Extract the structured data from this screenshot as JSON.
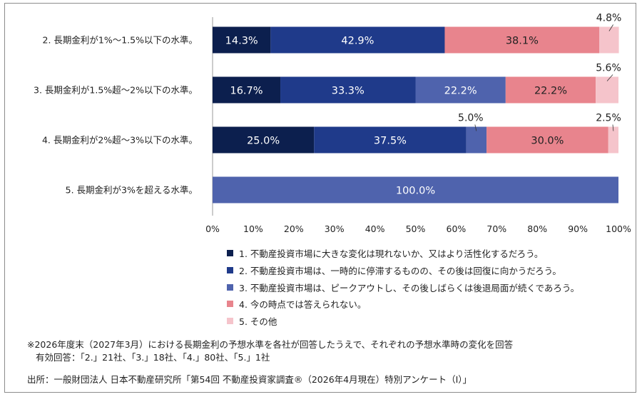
{
  "chart_data": {
    "type": "bar",
    "orientation": "horizontal",
    "stacked": true,
    "categories": [
      "2.  長期金利が1%～1.5%以下の水準。",
      "3.  長期金利が1.5%超～2%以下の水準。",
      "4.  長期金利が2%超～3%以下の水準。",
      "5.  長期金利が3%を超える水準。"
    ],
    "series": [
      {
        "name": "1.  不動産投資市場に大きな変化は現れないか、又はより活性化するだろう。",
        "color": "#0c1f4e",
        "values": [
          14.3,
          16.7,
          25.0,
          0
        ]
      },
      {
        "name": "2.  不動産投資市場は、一時的に停滞するものの、その後は回復に向かうだろう。",
        "color": "#1f3a8a",
        "values": [
          42.9,
          33.3,
          37.5,
          0
        ]
      },
      {
        "name": "3.  不動産投資市場は、ピークアウトし、その後しばらくは後退局面が続くであろう。",
        "color": "#4f63ad",
        "values": [
          0,
          22.2,
          5.0,
          100.0
        ]
      },
      {
        "name": "4.  今の時点では答えられない。",
        "color": "#e8848d",
        "values": [
          38.1,
          22.2,
          30.0,
          0
        ]
      },
      {
        "name": "5.  その他",
        "color": "#f5c4cb",
        "values": [
          4.8,
          5.6,
          2.5,
          0
        ]
      }
    ],
    "data_labels": [
      [
        "14.3%",
        "42.9%",
        "",
        "38.1%",
        "4.8%"
      ],
      [
        "16.7%",
        "33.3%",
        "22.2%",
        "22.2%",
        "5.6%"
      ],
      [
        "25.0%",
        "37.5%",
        "5.0%",
        "30.0%",
        "2.5%"
      ],
      [
        "",
        "",
        "100.0%",
        "",
        ""
      ]
    ],
    "xlim": [
      0,
      100
    ],
    "x_ticks": [
      "0%",
      "10%",
      "20%",
      "30%",
      "40%",
      "50%",
      "60%",
      "70%",
      "80%",
      "90%",
      "100%"
    ],
    "grid": false,
    "legend_position": "bottom"
  },
  "notes": {
    "line1": "※2026年度末（2027年3月）における長期金利の予想水準を各社が回答したうえで、それぞれの予想水準時の変化を回答",
    "line2": "有効回答：「2.」21社、「3.」18社、「4.」80社、「5.」1社"
  },
  "source": "出所：一般財団法人 日本不動産研究所「第54回 不動産投資家調査®（2026年4月現在）特別アンケート（Ⅰ）」"
}
